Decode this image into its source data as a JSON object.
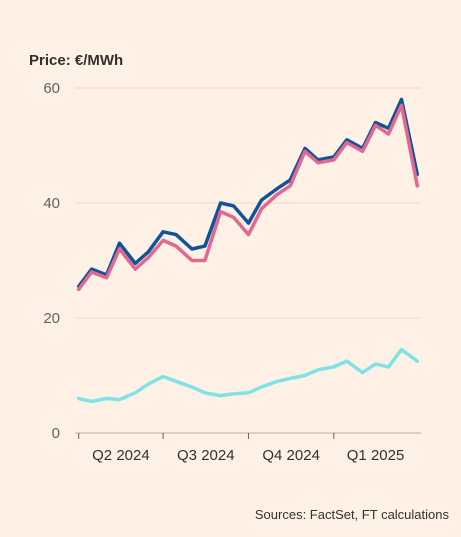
{
  "chart_data": {
    "type": "line",
    "title": "Price: €/MWh",
    "xlabel": "",
    "ylabel": "",
    "ylim": [
      0,
      60
    ],
    "yticks": [
      0,
      20,
      40,
      60
    ],
    "xticks": [
      "Q2 2024",
      "Q3 2024",
      "Q4 2024",
      "Q1 2025"
    ],
    "grid": true,
    "legend": "none",
    "x": [
      "2024-04-01",
      "2024-04-15",
      "2024-05-01",
      "2024-05-15",
      "2024-06-01",
      "2024-06-15",
      "2024-07-01",
      "2024-07-15",
      "2024-08-01",
      "2024-08-15",
      "2024-09-01",
      "2024-09-15",
      "2024-10-01",
      "2024-10-15",
      "2024-11-01",
      "2024-11-15",
      "2024-12-01",
      "2024-12-15",
      "2025-01-01",
      "2025-01-15",
      "2025-02-01",
      "2025-02-15",
      "2025-03-01",
      "2025-03-15",
      "2025-04-01"
    ],
    "series": [
      {
        "color": "#0F5499",
        "values": [
          25.5,
          28.5,
          27.5,
          33.0,
          29.5,
          31.5,
          35.0,
          34.5,
          32.0,
          32.5,
          40.0,
          39.5,
          36.5,
          40.5,
          42.5,
          44.0,
          49.5,
          47.5,
          48.0,
          51.0,
          49.5,
          54.0,
          53.0,
          58.0,
          45.0
        ]
      },
      {
        "color": "#E3688F",
        "values": [
          25.0,
          28.0,
          27.0,
          32.0,
          28.5,
          30.5,
          33.5,
          32.5,
          30.0,
          30.0,
          38.5,
          37.5,
          34.5,
          39.0,
          41.5,
          43.0,
          49.0,
          47.0,
          47.5,
          50.5,
          49.0,
          53.5,
          52.0,
          57.0,
          43.0
        ]
      },
      {
        "color": "#7FE2E6",
        "values": [
          6.0,
          5.5,
          6.0,
          5.8,
          7.0,
          8.5,
          9.8,
          9.0,
          8.0,
          7.0,
          6.5,
          6.8,
          7.0,
          8.0,
          9.0,
          9.5,
          10.0,
          11.0,
          11.5,
          12.5,
          10.5,
          12.0,
          11.5,
          14.5,
          12.5
        ]
      }
    ]
  },
  "source": "Sources: FactSet, FT calculations"
}
